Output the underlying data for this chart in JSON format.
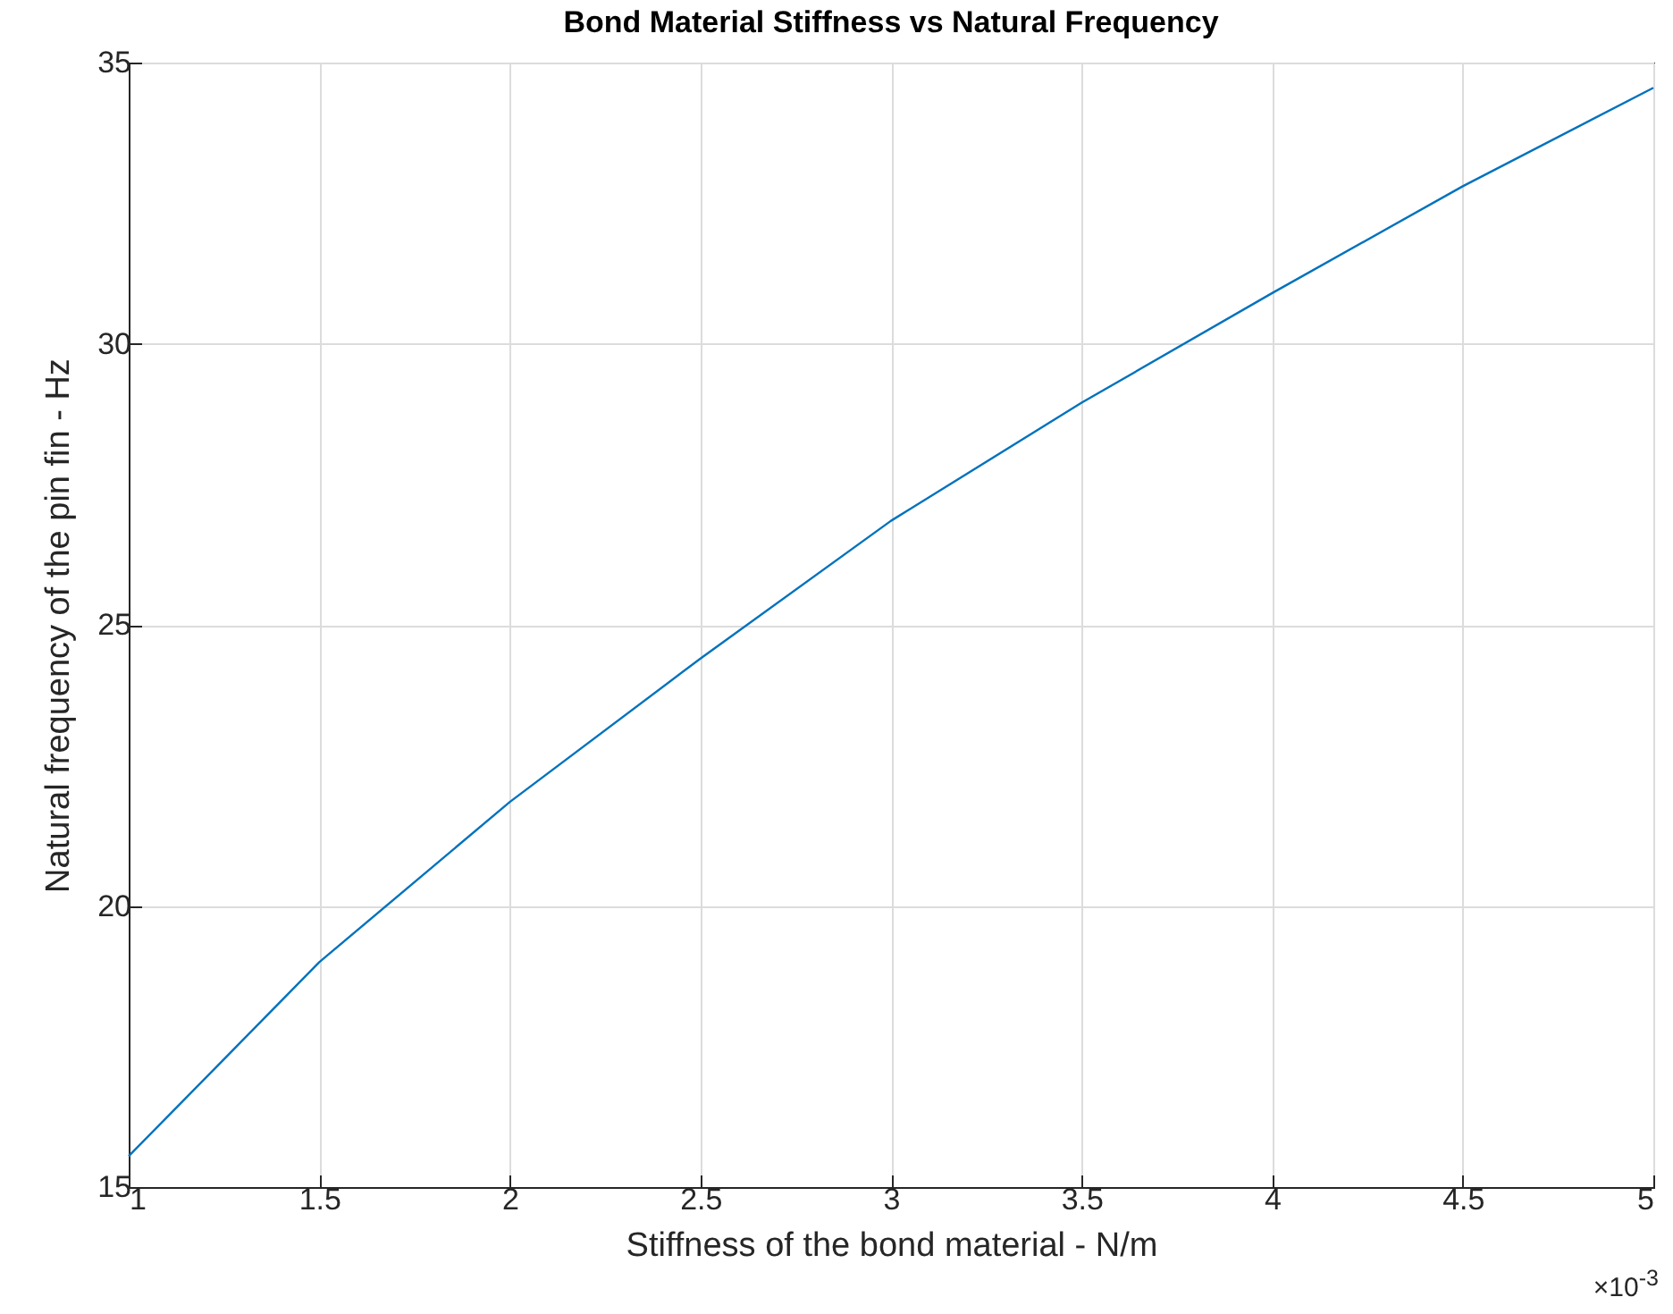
{
  "chart_data": {
    "type": "line",
    "title": "Bond Material Stiffness vs Natural Frequency",
    "xlabel": "Stiffness of the bond material - N/m",
    "ylabel": "Natural frequency of the pin fin - Hz",
    "x": [
      1,
      1.5,
      2,
      2.5,
      3,
      3.5,
      4,
      4.5,
      5
    ],
    "series": [
      {
        "color": "#0072bd",
        "values": [
          15.55,
          19.0,
          21.85,
          24.4,
          26.85,
          28.95,
          30.9,
          32.8,
          34.55
        ]
      }
    ],
    "xlim": [
      1,
      5
    ],
    "xticks": [
      1,
      1.5,
      2,
      2.5,
      3,
      3.5,
      4,
      4.5,
      5
    ],
    "ylim": [
      15,
      35
    ],
    "yticks": [
      15,
      20,
      25,
      30,
      35
    ],
    "annotations": [
      "×10$^{-3}$"
    ],
    "grid": true
  }
}
